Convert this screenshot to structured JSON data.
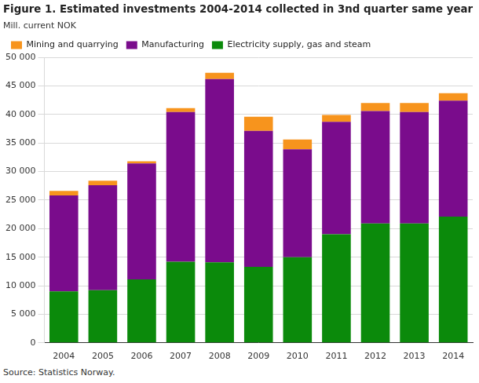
{
  "chart_data": {
    "type": "bar",
    "title": "Figure 1. Estimated investments 2004-2014 collected in 3nd quarter same year",
    "y_label": "Mill. current NOK",
    "source": "Source: Statistics Norway.",
    "categories": [
      "2004",
      "2005",
      "2006",
      "2007",
      "2008",
      "2009",
      "2010",
      "2011",
      "2012",
      "2013",
      "2014"
    ],
    "series": [
      {
        "name": "Electricity supply, gas and steam",
        "color": "#0b8a0b",
        "values": [
          9000,
          9200,
          11100,
          14200,
          14100,
          13300,
          15000,
          19000,
          20900,
          20900,
          22100
        ]
      },
      {
        "name": "Manufacturing",
        "color": "#7a0c8c",
        "values": [
          16800,
          18400,
          20300,
          26200,
          32100,
          23800,
          18900,
          19700,
          19700,
          19500,
          20300
        ]
      },
      {
        "name": "Mining and quarrying",
        "color": "#f7941d",
        "values": [
          800,
          800,
          400,
          700,
          1100,
          2500,
          1700,
          1200,
          1400,
          1600,
          1300
        ]
      }
    ],
    "stacked": true,
    "ylim": [
      0,
      50000
    ],
    "yticks": [
      0,
      {
        "value": 5000,
        "label": "5 000"
      },
      {
        "value": 10000,
        "label": "10 000"
      },
      {
        "value": 15000,
        "label": "15 000"
      },
      {
        "value": 20000,
        "label": "20 000"
      },
      {
        "value": 25000,
        "label": "25 000"
      },
      {
        "value": 30000,
        "label": "30 000"
      },
      {
        "value": 35000,
        "label": "35 000"
      },
      {
        "value": 40000,
        "label": "40 000"
      },
      {
        "value": 45000,
        "label": "45 000"
      },
      {
        "value": 50000,
        "label": "50 000"
      }
    ],
    "grid": true,
    "legend": "upper left"
  }
}
